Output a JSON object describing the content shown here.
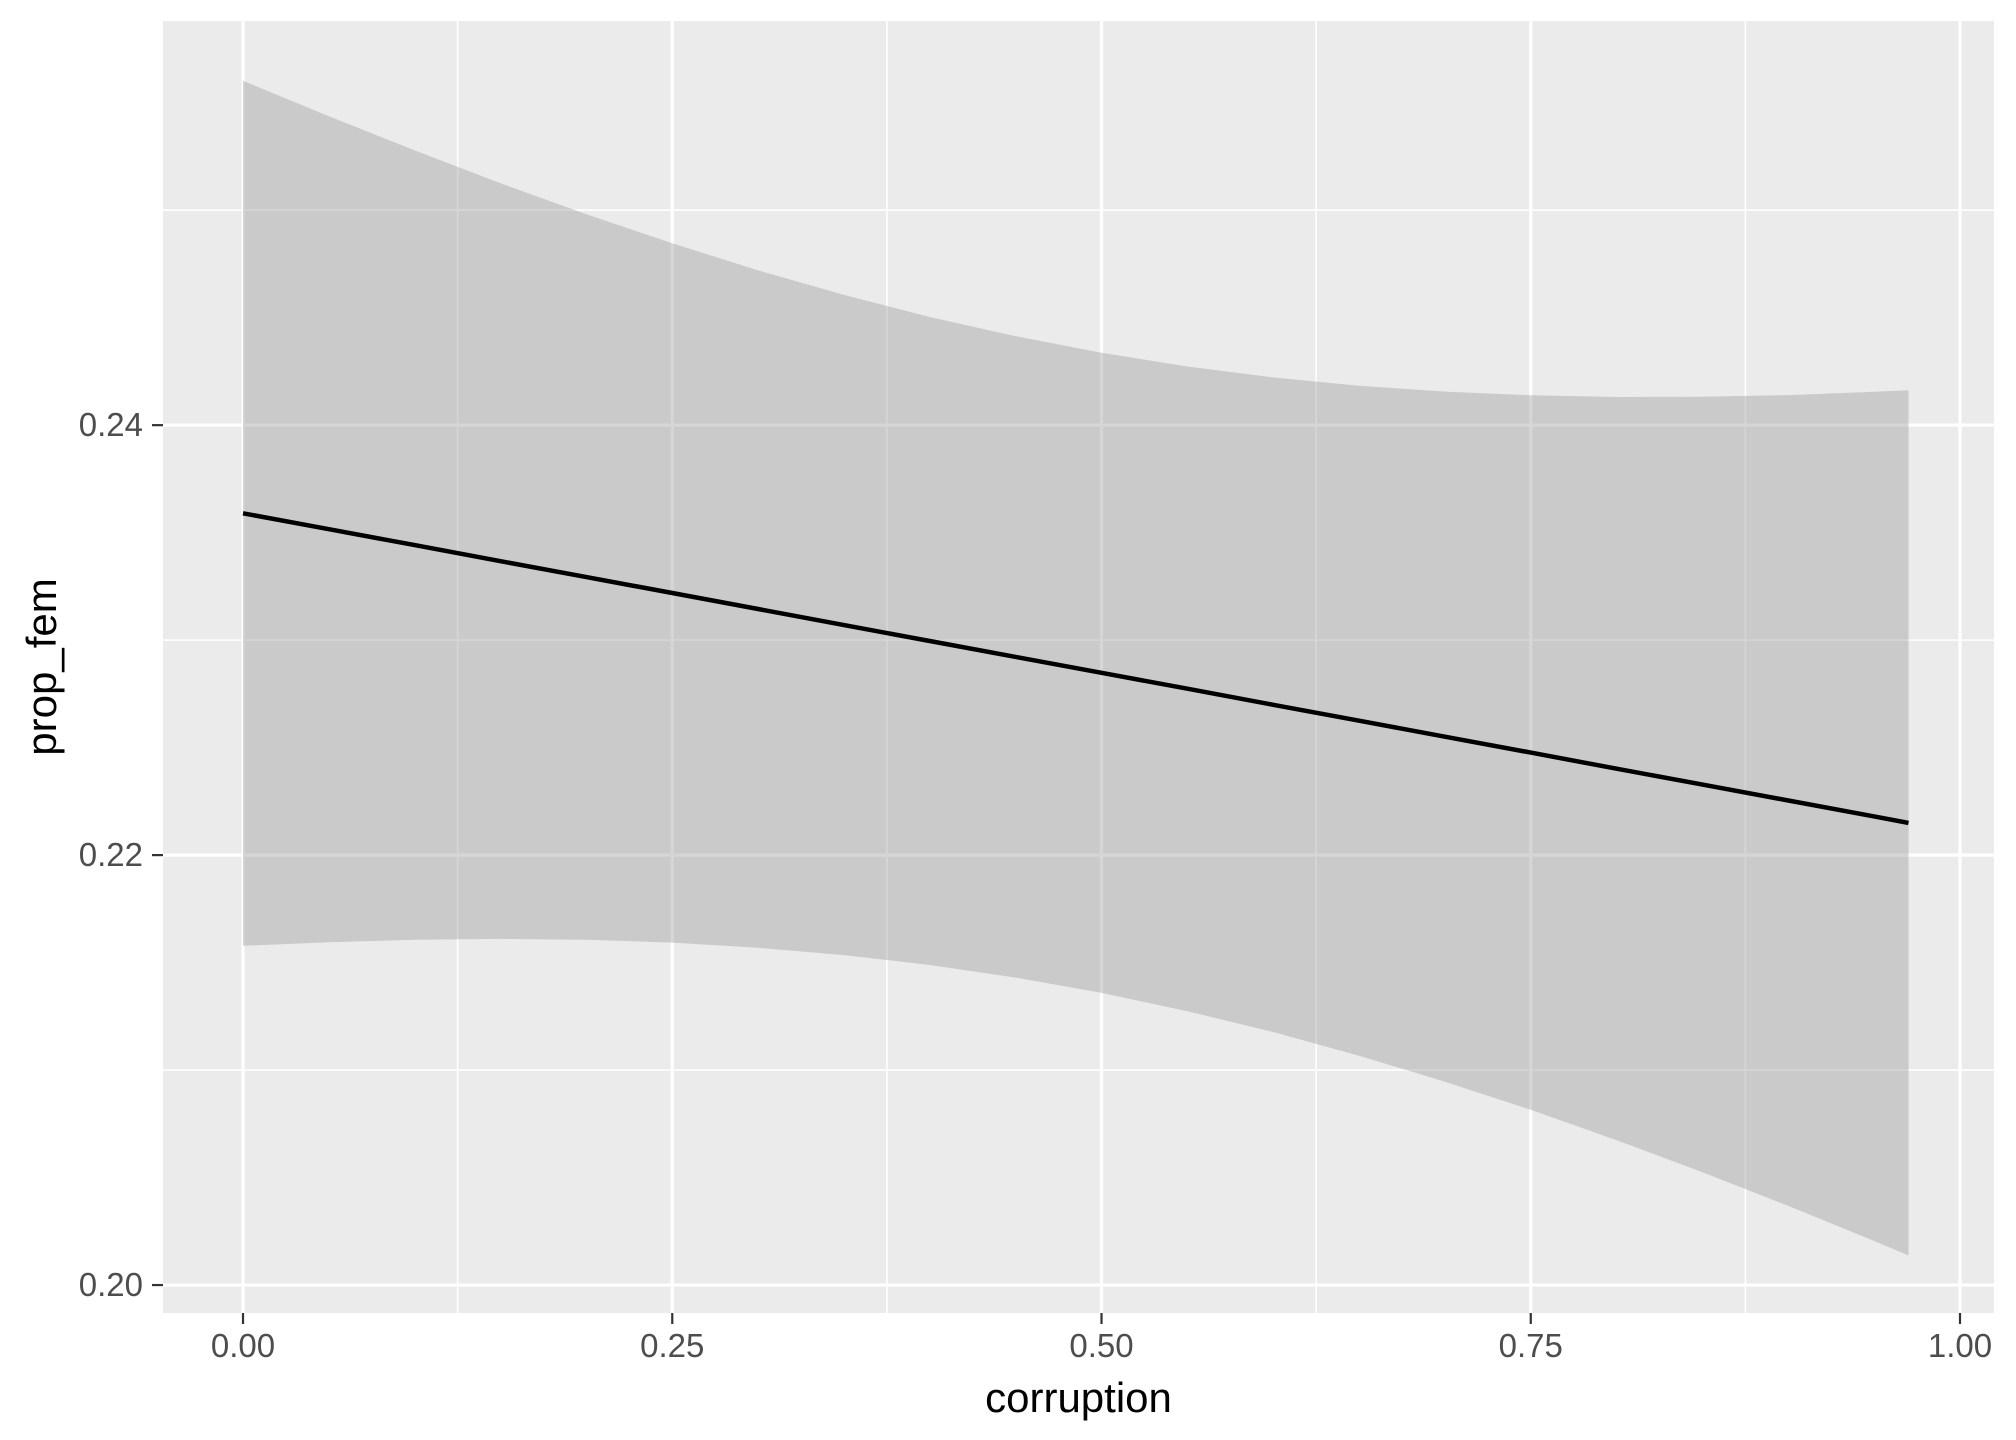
{
  "figure": {
    "background": "#FFFFFF",
    "panel_background": "#EBEBEB",
    "grid_color": "#FFFFFF",
    "tick_color": "#333333",
    "tick_label_color": "#4D4D4D",
    "axis_title_color": "#000000"
  },
  "chart_data": {
    "type": "line",
    "title": "",
    "xlabel": "corruption",
    "ylabel": "prop_fem",
    "grid": true,
    "legend_position": "none",
    "xlim": [
      -0.0466,
      1.0198
    ],
    "ylim": [
      0.1987,
      0.2588
    ],
    "x_ticks": {
      "values": [
        0.0,
        0.25,
        0.5,
        0.75,
        1.0
      ],
      "labels": [
        "0.00",
        "0.25",
        "0.50",
        "0.75",
        "1.00"
      ]
    },
    "y_ticks": {
      "values": [
        0.2,
        0.22,
        0.24
      ],
      "labels": [
        "0.20",
        "0.22",
        "0.24"
      ]
    },
    "x_minor_ticks": [
      0.125,
      0.375,
      0.625,
      0.875
    ],
    "y_minor_ticks": [
      0.21,
      0.23,
      0.25
    ],
    "series": [
      {
        "name": "linear-fit-with-95ci",
        "type": "line+ribbon",
        "line_color": "#000000",
        "ribbon_fill": "#999999",
        "ribbon_opacity": 0.4,
        "x_range": [
          0.0,
          0.97
        ],
        "fit_endpoints": [
          0.2359,
          0.2215
        ],
        "x": [
          0.0,
          0.05,
          0.1,
          0.15,
          0.2,
          0.25,
          0.3,
          0.35,
          0.4,
          0.45,
          0.5,
          0.55,
          0.6,
          0.65,
          0.7,
          0.75,
          0.8,
          0.85,
          0.9,
          0.95,
          0.97
        ],
        "fit": [
          0.2359,
          0.23516,
          0.23442,
          0.23367,
          0.23293,
          0.23219,
          0.23145,
          0.2307,
          0.22996,
          0.22922,
          0.22848,
          0.22774,
          0.22699,
          0.22625,
          0.22551,
          0.22477,
          0.22402,
          0.22328,
          0.22254,
          0.2218,
          0.2215
        ],
        "upper": [
          0.25602,
          0.25437,
          0.25278,
          0.25125,
          0.24981,
          0.24846,
          0.2472,
          0.24606,
          0.24503,
          0.24414,
          0.24337,
          0.24273,
          0.24222,
          0.24183,
          0.24156,
          0.24139,
          0.24131,
          0.24132,
          0.2414,
          0.24155,
          0.24162
        ],
        "lower": [
          0.21578,
          0.21595,
          0.21606,
          0.2161,
          0.21606,
          0.21593,
          0.21569,
          0.21535,
          0.21489,
          0.2143,
          0.21359,
          0.21274,
          0.21177,
          0.21067,
          0.20946,
          0.20815,
          0.20674,
          0.20525,
          0.20368,
          0.20205,
          0.20138
        ]
      }
    ]
  }
}
